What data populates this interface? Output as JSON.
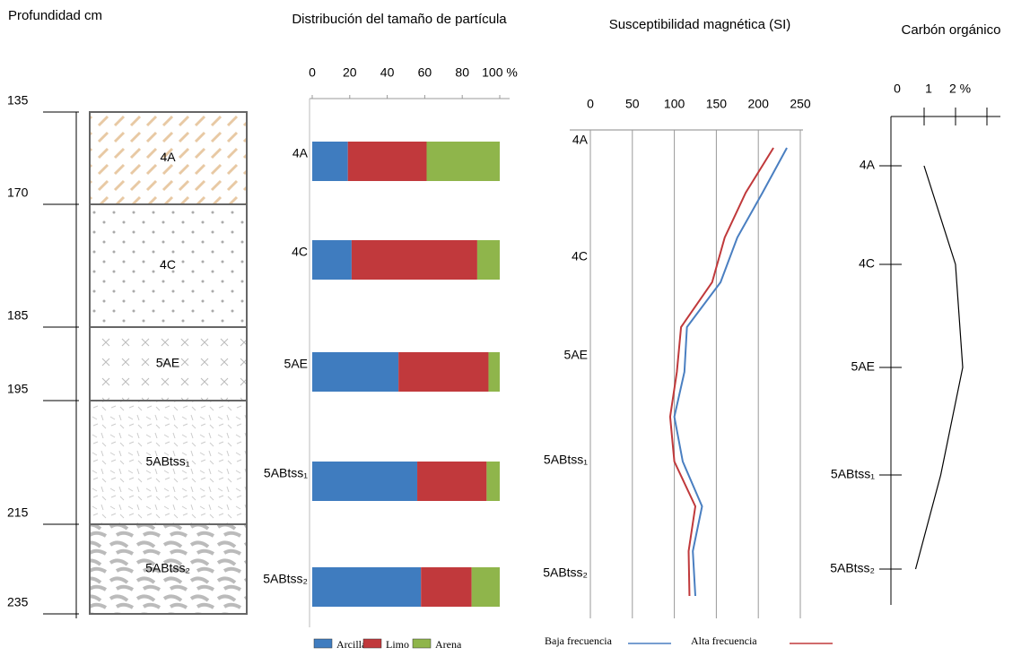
{
  "chart_data": [
    {
      "type": "profile",
      "title": "Profundidad cm",
      "depths": [
        135,
        170,
        185,
        195,
        215,
        235
      ],
      "horizons": [
        "4A",
        "4C",
        "5AE",
        "5ABtss₁",
        "5ABtss₂"
      ]
    },
    {
      "type": "bar",
      "orientation": "horizontal",
      "stacked": true,
      "title": "Distribución del tamaño de partícula",
      "categories": [
        "4A",
        "4C",
        "5AE",
        "5ABtss₁",
        "5ABtss₂"
      ],
      "series": [
        {
          "name": "Arcilla",
          "color": "#3f7cbf",
          "values": [
            19,
            21,
            46,
            56,
            58
          ]
        },
        {
          "name": "Limo",
          "color": "#c1393c",
          "values": [
            42,
            67,
            48,
            37,
            27
          ]
        },
        {
          "name": "Arena",
          "color": "#8fb54b",
          "values": [
            39,
            12,
            6,
            7,
            15
          ]
        }
      ],
      "xlim": [
        0,
        100
      ],
      "xticks": [
        0,
        20,
        40,
        60,
        80,
        {
          "value": 100,
          "label": "100 %"
        }
      ],
      "legend": "bottom"
    },
    {
      "type": "line",
      "title": "Susceptibilidad magnética (SI)",
      "horizons": [
        "4A",
        "4C",
        "5AE",
        "5ABtss₁",
        "5ABtss₂"
      ],
      "series": [
        {
          "name": "Baja frecuencia",
          "color": "#4a7fc1",
          "values": [
            234,
            205,
            175,
            155,
            115,
            112,
            100,
            110,
            133,
            122,
            125
          ]
        },
        {
          "name": "Alta frecuencia",
          "color": "#c0393b",
          "values": [
            218,
            185,
            160,
            145,
            108,
            103,
            95,
            100,
            125,
            117,
            118
          ]
        }
      ],
      "xlim": [
        0,
        250
      ],
      "xticks": [
        0,
        50,
        100,
        150,
        200,
        250
      ],
      "grid": true,
      "legend": "bottom"
    },
    {
      "type": "line",
      "title": "Carbón orgánico",
      "categories": [
        "4A",
        "4C",
        "5AE",
        "5ABtss₁",
        "5ABtss₂"
      ],
      "values": [
        0.97,
        1.97,
        2.2,
        1.5,
        0.7
      ],
      "color": "#000000",
      "xlim": [
        0,
        3.4
      ],
      "xticks": [
        0,
        1,
        {
          "value": 2,
          "label": "2 %"
        }
      ]
    }
  ]
}
